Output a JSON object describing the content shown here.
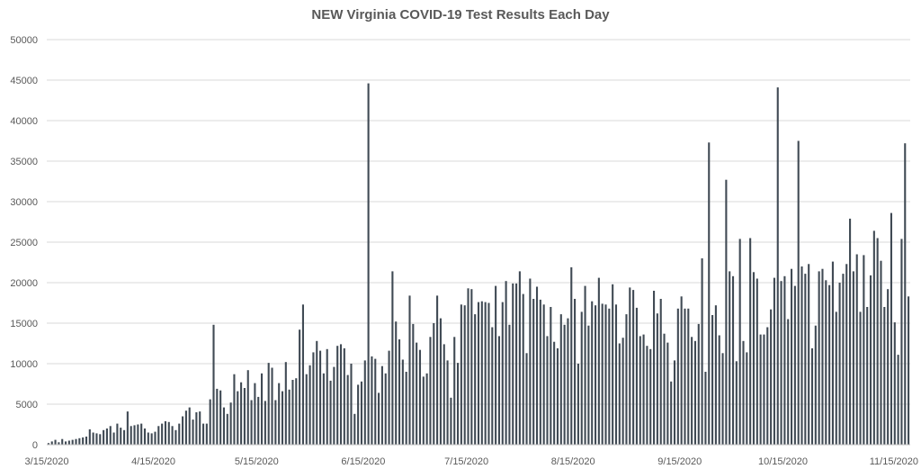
{
  "chart_data": {
    "type": "bar",
    "title": "NEW Virginia COVID-19 Test Results Each Day",
    "xlabel": "",
    "ylabel": "",
    "ylim": [
      0,
      50000
    ],
    "yticks": [
      0,
      5000,
      10000,
      15000,
      20000,
      25000,
      30000,
      35000,
      40000,
      45000,
      50000
    ],
    "ytick_labels": [
      "0",
      "5000",
      "10000",
      "15000",
      "20000",
      "25000",
      "30000",
      "35000",
      "40000",
      "45000",
      "50000"
    ],
    "xtick_labels": [
      "3/15/2020",
      "4/15/2020",
      "5/15/2020",
      "6/15/2020",
      "7/15/2020",
      "8/15/2020",
      "9/15/2020",
      "10/15/2020",
      "11/15/2020"
    ],
    "grid": true,
    "legend": "none",
    "bar_color": "#404a54",
    "start_date": "2020-03-15",
    "values": [
      200,
      400,
      600,
      300,
      700,
      400,
      500,
      600,
      700,
      800,
      900,
      1000,
      1900,
      1500,
      1400,
      1300,
      1800,
      2000,
      2300,
      1500,
      2600,
      2100,
      1800,
      4100,
      2300,
      2400,
      2500,
      2600,
      2000,
      1500,
      1400,
      1600,
      2300,
      2600,
      2900,
      2800,
      2300,
      1800,
      2600,
      3500,
      4200,
      4600,
      3100,
      4000,
      4100,
      2600,
      2600,
      5600,
      14800,
      6900,
      6700,
      4600,
      3800,
      5200,
      8700,
      6600,
      7700,
      7000,
      9200,
      5500,
      7600,
      5900,
      8800,
      5400,
      10100,
      9500,
      5500,
      7600,
      6600,
      10200,
      6800,
      8000,
      8200,
      14200,
      17300,
      8700,
      9800,
      11400,
      12800,
      11600,
      8800,
      11800,
      7900,
      9600,
      12200,
      12400,
      11900,
      8600,
      10000,
      3800,
      7400,
      7800,
      10400,
      44600,
      10900,
      10600,
      6400,
      9700,
      8800,
      11600,
      21400,
      15200,
      13000,
      10500,
      9000,
      18400,
      14900,
      12600,
      11700,
      8400,
      8800,
      13300,
      15000,
      18400,
      15600,
      12400,
      10400,
      5800,
      13300,
      10100,
      17300,
      17200,
      19300,
      19200,
      16100,
      17600,
      17700,
      17600,
      17500,
      14500,
      19600,
      13400,
      17600,
      20200,
      14800,
      19900,
      19900,
      21400,
      18600,
      11300,
      20500,
      18000,
      19500,
      17900,
      17300,
      13400,
      17000,
      12700,
      11900,
      16100,
      14800,
      15600,
      21900,
      18000,
      10000,
      16400,
      19600,
      14700,
      17700,
      17200,
      20600,
      17400,
      17300,
      16800,
      19800,
      17300,
      12500,
      13200,
      16100,
      19400,
      19100,
      16900,
      13400,
      13600,
      12200,
      11800,
      19000,
      16200,
      18000,
      13700,
      12600,
      7800,
      10400,
      16800,
      18300,
      16800,
      16800,
      13300,
      12800,
      14900,
      23000,
      9000,
      37300,
      16000,
      17200,
      13500,
      11300,
      32700,
      21400,
      20800,
      10300,
      25400,
      12800,
      11400,
      25500,
      21300,
      20500,
      13600,
      13600,
      14500,
      16700,
      20600,
      44100,
      20200,
      20800,
      15500,
      21700,
      19600,
      37500,
      22000,
      21100,
      22300,
      11900,
      14700,
      21400,
      21700,
      20300,
      19700,
      22600,
      16400,
      20000,
      21100,
      22300,
      27900,
      21400,
      23500,
      16400,
      23400,
      17000,
      20900,
      26400,
      25500,
      22700,
      17000,
      19200,
      28600,
      15100,
      11100,
      25400,
      37200,
      18300
    ]
  }
}
